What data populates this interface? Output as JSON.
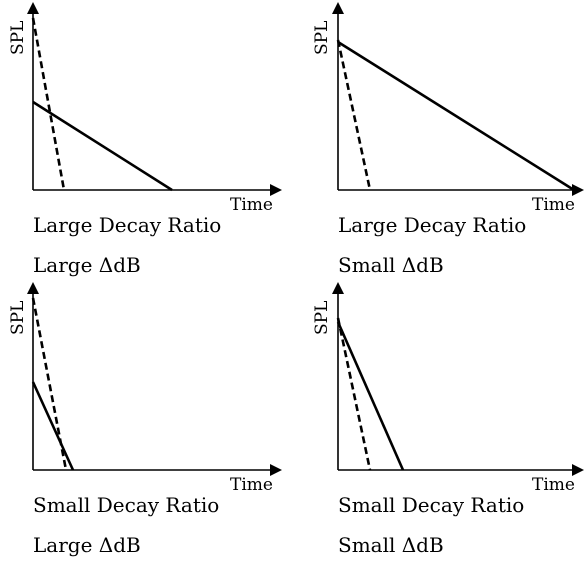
{
  "axis_labels": {
    "y": "SPL",
    "x": "Time"
  },
  "panels": [
    {
      "caption_line1": "Large Decay Ratio",
      "caption_line2": "Large ΔdB"
    },
    {
      "caption_line1": "Large Decay Ratio",
      "caption_line2": "Small ΔdB"
    },
    {
      "caption_line1": "Small Decay Ratio",
      "caption_line2": "Large ΔdB"
    },
    {
      "caption_line1": "Small Decay Ratio",
      "caption_line2": "Small ΔdB"
    }
  ]
}
